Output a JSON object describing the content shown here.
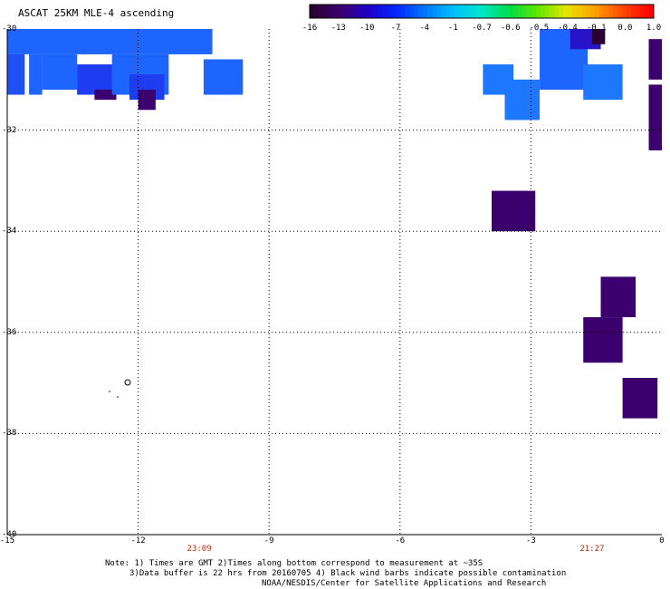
{
  "title": "ASCAT 25KM MLE-4 ascending",
  "colorbar": {
    "labels": [
      "-16",
      "-13",
      "-10",
      "-7",
      "-4",
      "-1",
      "-0.7",
      "-0.6",
      "-0.5",
      "-0.4",
      "-0.1",
      "0.0",
      "1.0"
    ],
    "colors": [
      "#2a0030",
      "#3b006e",
      "#1e00c8",
      "#0028ff",
      "#0078ff",
      "#00c0ff",
      "#00e6c8",
      "#00dc46",
      "#64e600",
      "#e6e600",
      "#ffa000",
      "#ff4600",
      "#ff0000"
    ]
  },
  "axes": {
    "lat_labels": [
      "-30",
      "-32",
      "-34",
      "-36",
      "-38",
      "-40"
    ],
    "lon_labels": [
      "-15",
      "-12",
      "-9",
      "-6",
      "-3",
      "0"
    ],
    "lon_range": [
      -15,
      0
    ],
    "lat_range": [
      -30,
      -40
    ]
  },
  "times": [
    {
      "text": "23:09",
      "lon": -12.0
    },
    {
      "text": "21:27",
      "lon": -3.0
    }
  ],
  "notes": {
    "line1": "Note: 1) Times are GMT 2)Times along bottom correspond to measurement at ~35S",
    "line2": "3)Data buffer is 22 hrs from 20160705 4) Black wind barbs indicate possible contamination",
    "line3": "NOAA/NESDIS/Center for Satellite Applications and Research"
  },
  "chart_data": {
    "type": "heatmap",
    "title": "ASCAT 25KM MLE-4 ascending",
    "xlabel": "",
    "ylabel": "",
    "xlim": [
      -15,
      0
    ],
    "ylim": [
      -40,
      -30
    ],
    "cells": [
      {
        "lon0": -15.0,
        "lon1": -10.3,
        "lat0": -30.0,
        "lat1": -30.5,
        "v": -7
      },
      {
        "lon0": -15.0,
        "lon1": -14.6,
        "lat0": -30.5,
        "lat1": -31.3,
        "v": -8
      },
      {
        "lon0": -14.5,
        "lon1": -14.2,
        "lat0": -30.5,
        "lat1": -31.3,
        "v": -7
      },
      {
        "lon0": -14.2,
        "lon1": -13.4,
        "lat0": -30.5,
        "lat1": -31.2,
        "v": -7
      },
      {
        "lon0": -13.4,
        "lon1": -12.5,
        "lat0": -30.7,
        "lat1": -31.3,
        "v": -9
      },
      {
        "lon0": -13.0,
        "lon1": -12.5,
        "lat0": -31.2,
        "lat1": -31.4,
        "v": -12
      },
      {
        "lon0": -12.6,
        "lon1": -11.3,
        "lat0": -30.5,
        "lat1": -31.3,
        "v": -7
      },
      {
        "lon0": -12.2,
        "lon1": -11.4,
        "lat0": -30.9,
        "lat1": -31.4,
        "v": -9
      },
      {
        "lon0": -12.0,
        "lon1": -11.6,
        "lat0": -31.2,
        "lat1": -31.6,
        "v": -12
      },
      {
        "lon0": -10.5,
        "lon1": -9.6,
        "lat0": -30.6,
        "lat1": -31.3,
        "v": -7
      },
      {
        "lon0": -4.1,
        "lon1": -3.4,
        "lat0": -30.7,
        "lat1": -31.3,
        "v": -6
      },
      {
        "lon0": -3.6,
        "lon1": -2.8,
        "lat0": -31.0,
        "lat1": -31.8,
        "v": -6
      },
      {
        "lon0": -2.8,
        "lon1": -1.7,
        "lat0": -30.0,
        "lat1": -31.2,
        "v": -7
      },
      {
        "lon0": -2.1,
        "lon1": -1.4,
        "lat0": -30.0,
        "lat1": -30.4,
        "v": -10
      },
      {
        "lon0": -1.6,
        "lon1": -1.3,
        "lat0": -30.0,
        "lat1": -30.3,
        "v": -16
      },
      {
        "lon0": -1.8,
        "lon1": -0.9,
        "lat0": -30.7,
        "lat1": -31.4,
        "v": -6
      },
      {
        "lon0": -0.3,
        "lon1": 0.0,
        "lat0": -30.2,
        "lat1": -31.0,
        "v": -13
      },
      {
        "lon0": -0.3,
        "lon1": 0.0,
        "lat0": -31.1,
        "lat1": -32.4,
        "v": -13
      },
      {
        "lon0": -3.9,
        "lon1": -2.9,
        "lat0": -33.2,
        "lat1": -34.0,
        "v": -13
      },
      {
        "lon0": -1.4,
        "lon1": -0.6,
        "lat0": -34.9,
        "lat1": -35.7,
        "v": -13
      },
      {
        "lon0": -1.8,
        "lon1": -0.9,
        "lat0": -35.7,
        "lat1": -36.6,
        "v": -13
      },
      {
        "lon0": -0.9,
        "lon1": -0.1,
        "lat0": -36.9,
        "lat1": -37.7,
        "v": -13
      }
    ]
  }
}
